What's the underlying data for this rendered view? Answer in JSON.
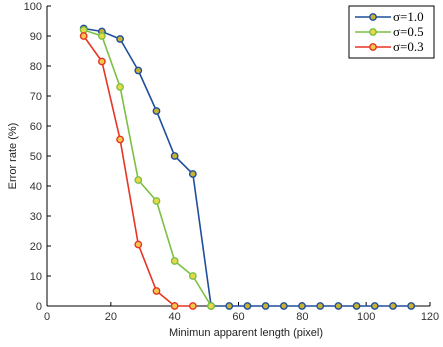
{
  "chart_data": {
    "type": "line",
    "title": "",
    "xlabel": "Minimun apparent length (pixel)",
    "ylabel": "Error rate (%)",
    "xlim": [
      0,
      120
    ],
    "ylim": [
      0,
      100
    ],
    "xticks": [
      0,
      20,
      40,
      60,
      80,
      100,
      120
    ],
    "xtick_labels": [
      "0",
      "20",
      "40",
      "60",
      "80",
      "100",
      "120"
    ],
    "yticks": [
      0,
      10,
      20,
      30,
      40,
      50,
      60,
      70,
      80,
      90,
      100
    ],
    "ytick_labels": [
      "0",
      "10",
      "20",
      "30",
      "40",
      "50",
      "60",
      "70",
      "80",
      "90",
      "100"
    ],
    "grid": false,
    "legend_position": "top-right",
    "series": [
      {
        "name": "σ=1.0",
        "color": "#1f4e9c",
        "marker_fill": "#c9b22e",
        "x": [
          11.5,
          17.2,
          22.9,
          28.6,
          34.3,
          40.0,
          45.7,
          51.4,
          57.1,
          62.8,
          68.5,
          74.2,
          79.9,
          85.6,
          91.3,
          97.0,
          102.7,
          108.4,
          114.1
        ],
        "y": [
          92.5,
          91.5,
          89,
          78.5,
          65,
          50,
          44,
          0,
          0,
          0,
          0,
          0,
          0,
          0,
          0,
          0,
          0,
          0,
          0
        ]
      },
      {
        "name": "σ=0.5",
        "color": "#7bc043",
        "marker_fill": "#e8d84a",
        "x": [
          11.5,
          17.2,
          22.9,
          28.6,
          34.3,
          40.0,
          45.7,
          51.4
        ],
        "y": [
          92,
          90,
          73,
          42,
          35,
          15,
          10,
          0
        ]
      },
      {
        "name": "σ=0.3",
        "color": "#e53524",
        "marker_fill": "#f2c94c",
        "x": [
          11.5,
          17.2,
          22.9,
          28.6,
          34.3,
          40.0,
          45.7
        ],
        "y": [
          90,
          81.5,
          55.5,
          20.5,
          5,
          0,
          0
        ]
      }
    ]
  }
}
